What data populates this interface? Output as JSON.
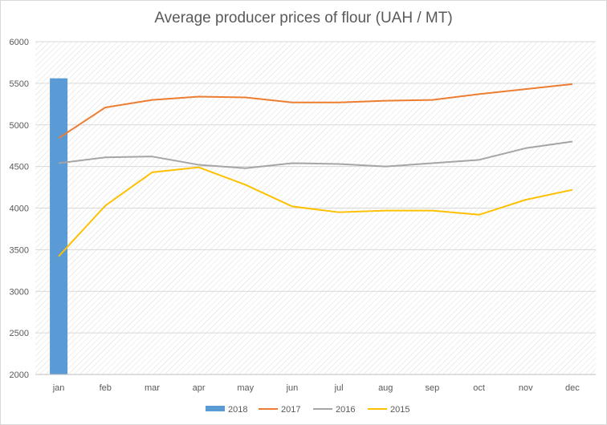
{
  "chart_data": {
    "type": "line",
    "title": "Average producer prices of flour (UAH / MT)",
    "xlabel": "",
    "ylabel": "",
    "ylim": [
      2000,
      6000
    ],
    "yticks": [
      2000,
      2500,
      3000,
      3500,
      4000,
      4500,
      5000,
      5500,
      6000
    ],
    "categories": [
      "jan",
      "feb",
      "mar",
      "apr",
      "may",
      "jun",
      "jul",
      "aug",
      "sep",
      "oct",
      "nov",
      "dec"
    ],
    "grid": "diagonal hatched plot background",
    "legend_position": "bottom",
    "series": [
      {
        "name": "2018",
        "kind": "bar",
        "color": "#5b9bd5",
        "values": [
          5560,
          null,
          null,
          null,
          null,
          null,
          null,
          null,
          null,
          null,
          null,
          null
        ]
      },
      {
        "name": "2017",
        "kind": "line",
        "color": "#ed7d31",
        "values": [
          4840,
          5210,
          5300,
          5340,
          5330,
          5270,
          5270,
          5290,
          5300,
          5370,
          5430,
          5490
        ]
      },
      {
        "name": "2016",
        "kind": "line",
        "color": "#a5a5a5",
        "values": [
          4540,
          4610,
          4620,
          4520,
          4480,
          4540,
          4530,
          4500,
          4540,
          4580,
          4720,
          4800
        ]
      },
      {
        "name": "2015",
        "kind": "line",
        "color": "#ffc000",
        "values": [
          3420,
          4030,
          4430,
          4490,
          4280,
          4020,
          3950,
          3970,
          3970,
          3920,
          4100,
          4220
        ]
      }
    ]
  }
}
